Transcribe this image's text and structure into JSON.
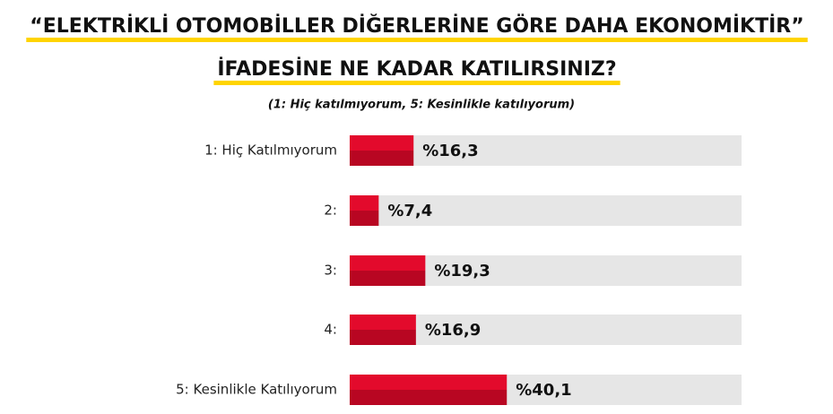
{
  "chart_data": {
    "type": "hbar",
    "title": "“ELEKTRİKLİ OTOMOBİLLER DİĞERLERİNE GÖRE DAHA EKONOMİKTİR”",
    "title_line2": "İFADESİNE NE KADAR KATILIRSINIZ?",
    "subtitle": "(1: Hiç katılmıyorum, 5: Kesinlikle katılıyorum)",
    "categories": [
      "1: Hiç Katılmıyorum",
      "2:",
      "3:",
      "4:",
      "5: Kesinlikle Katılıyorum"
    ],
    "values": [
      16.3,
      7.4,
      19.3,
      16.9,
      40.1
    ],
    "value_labels": [
      "%16,3",
      "%7,4",
      "%19,3",
      "%16,9",
      "%40,1"
    ],
    "xlim": [
      0,
      100
    ],
    "color": "#e30a2c"
  }
}
